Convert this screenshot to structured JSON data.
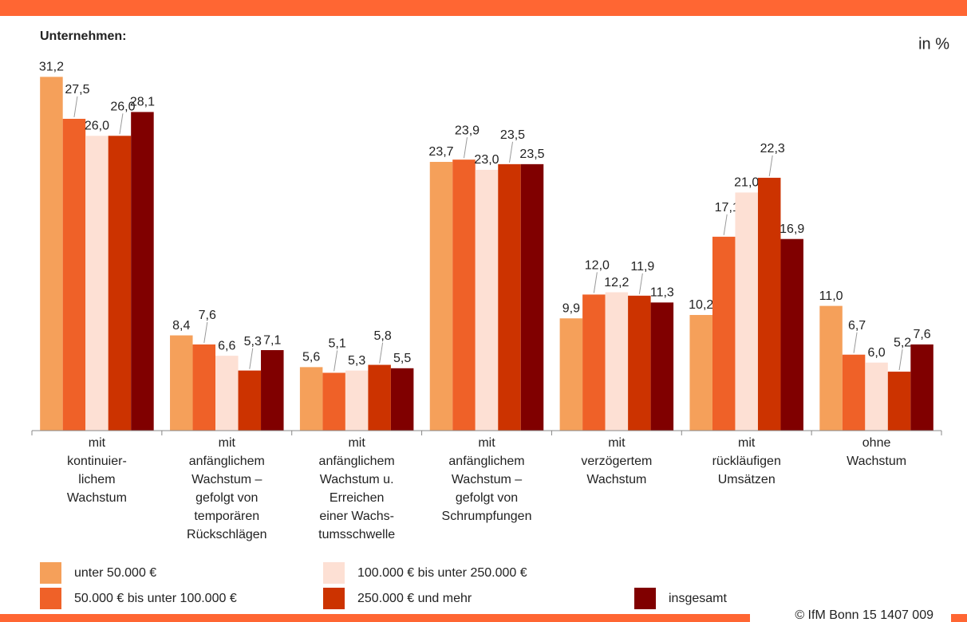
{
  "chart_data": {
    "type": "bar",
    "subtitle": "Unternehmen:",
    "unit_label": "in %",
    "source": "© IfM Bonn 15 1407 009",
    "categories": [
      [
        "mit",
        "kontinuier-",
        "lichem",
        "Wachstum"
      ],
      [
        "mit",
        "anfänglichem",
        "Wachstum –",
        "gefolgt von",
        "temporären",
        "Rückschlägen"
      ],
      [
        "mit",
        "anfänglichem",
        "Wachstum u.",
        "Erreichen",
        "einer Wachs-",
        "tumsschwelle"
      ],
      [
        "mit",
        "anfänglichem",
        "Wachstum –",
        "gefolgt von",
        "Schrumpfungen"
      ],
      [
        "mit",
        "verzögertem",
        "Wachstum"
      ],
      [
        "mit",
        "rückläufigen",
        "Umsätzen"
      ],
      [
        "ohne",
        "Wachstum"
      ]
    ],
    "series": [
      {
        "name": "unter 50.000 €",
        "color": "#f5a05a",
        "values": [
          31.2,
          8.4,
          5.6,
          23.7,
          9.9,
          10.2,
          11.0
        ],
        "value_labels": [
          "31,2",
          "8,4",
          "5,6",
          "23,7",
          "9,9",
          "10,2",
          "11,0"
        ]
      },
      {
        "name": "50.000 € bis unter 100.000 €",
        "color": "#ef6128",
        "values": [
          27.5,
          7.6,
          5.1,
          23.9,
          12.0,
          17.1,
          6.7
        ],
        "value_labels": [
          "27,5",
          "7,6",
          "5,1",
          "23,9",
          "12,0",
          "17,1",
          "6,7"
        ]
      },
      {
        "name": "100.000 € bis unter 250.000 €",
        "color": "#fde0d4",
        "values": [
          26.0,
          6.6,
          5.3,
          23.0,
          12.2,
          21.0,
          6.0
        ],
        "value_labels": [
          "26,0",
          "6,6",
          "5,3",
          "23,0",
          "12,2",
          "21,0",
          "6,0"
        ]
      },
      {
        "name": "250.000 € und mehr",
        "color": "#cc3300",
        "values": [
          26.0,
          5.3,
          5.8,
          23.5,
          11.9,
          22.3,
          5.2
        ],
        "value_labels": [
          "26,0",
          "5,3",
          "5,8",
          "23,5",
          "11,9",
          "22,3",
          "5,2"
        ]
      },
      {
        "name": "insgesamt",
        "color": "#800000",
        "values": [
          28.1,
          7.1,
          5.5,
          23.5,
          11.3,
          16.9,
          7.6
        ],
        "value_labels": [
          "28,1",
          "7,1",
          "5,5",
          "23,5",
          "11,3",
          "16,9",
          "7,6"
        ]
      }
    ],
    "ylim": [
      0,
      32
    ]
  }
}
